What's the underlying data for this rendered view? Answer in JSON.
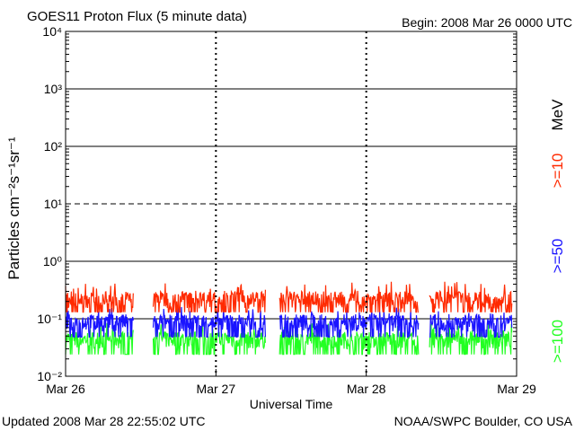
{
  "header": {
    "title": "GOES11 Proton Flux (5 minute data)",
    "begin": "Begin: 2008 Mar 26 0000 UTC"
  },
  "footer": {
    "updated": "Updated 2008 Mar 28 22:55:02 UTC",
    "credit": "NOAA/SWPC Boulder, CO USA"
  },
  "chart_data": {
    "type": "line",
    "title": "GOES11 Proton Flux (5 minute data)",
    "xlabel": "Universal Time",
    "ylabel": "Particles cm⁻²s⁻¹sr⁻¹",
    "y_scale": "log",
    "ylim": [
      0.01,
      10000
    ],
    "y_ticks": [
      {
        "value": 10000,
        "label": "10⁴"
      },
      {
        "value": 1000,
        "label": "10³"
      },
      {
        "value": 100,
        "label": "10²"
      },
      {
        "value": 10,
        "label": "10¹"
      },
      {
        "value": 1,
        "label": "10⁰"
      },
      {
        "value": 0.1,
        "label": "10⁻¹"
      },
      {
        "value": 0.01,
        "label": "10⁻²"
      }
    ],
    "x_tick_labels": [
      "Mar 26",
      "Mar 27",
      "Mar 28",
      "Mar 29"
    ],
    "xlim_days": [
      0,
      3
    ],
    "thresholds": [
      {
        "value": 10,
        "style": "dashed"
      },
      {
        "value": 1,
        "style": "solid"
      },
      {
        "value": 0.1,
        "style": "solid"
      }
    ],
    "data_gaps_days": [
      [
        0.45,
        0.58
      ],
      [
        1.33,
        1.42
      ],
      [
        2.35,
        2.42
      ]
    ],
    "series": [
      {
        "name": ">=10",
        "color": "#ff2a00",
        "floor": 0.13,
        "typical": [
          0.15,
          0.3
        ],
        "spike_max": 0.45
      },
      {
        "name": ">=50",
        "color": "#1a14ff",
        "floor": 0.048,
        "typical": [
          0.06,
          0.12
        ],
        "spike_max": 0.16
      },
      {
        "name": ">=100",
        "color": "#22ff22",
        "floor": 0.024,
        "typical": [
          0.03,
          0.06
        ],
        "spike_max": 0.085
      }
    ],
    "legend_unit": "MeV",
    "legend": "right, rotated"
  }
}
